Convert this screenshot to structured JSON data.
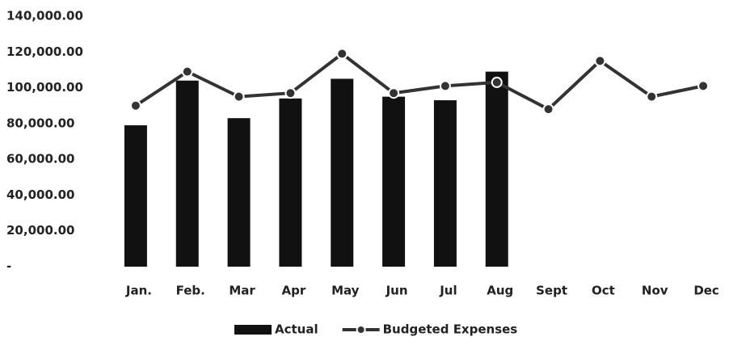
{
  "chart_data": {
    "type": "bar",
    "categories": [
      "Jan.",
      "Feb.",
      "Mar",
      "Apr",
      "May",
      "Jun",
      "Jul",
      "Aug",
      "Sept",
      "Oct",
      "Nov",
      "Dec"
    ],
    "series": [
      {
        "name": "Actual",
        "type": "bar",
        "color": "#111111",
        "values": [
          79000,
          104000,
          83000,
          94000,
          105000,
          95000,
          93000,
          109000,
          null,
          null,
          null,
          null
        ]
      },
      {
        "name": "Budgeted Expenses",
        "type": "line",
        "color": "#333333",
        "values": [
          90000,
          109000,
          95000,
          97000,
          119000,
          97000,
          101000,
          103000,
          88000,
          115000,
          95000,
          101000
        ]
      }
    ],
    "ylim": [
      0,
      140000
    ],
    "yticks": [
      {
        "value": 0,
        "label": "-"
      },
      {
        "value": 20000,
        "label": "20,000.00"
      },
      {
        "value": 40000,
        "label": "40,000.00"
      },
      {
        "value": 60000,
        "label": "60,000.00"
      },
      {
        "value": 80000,
        "label": "80,000.00"
      },
      {
        "value": 100000,
        "label": "100,000.00"
      },
      {
        "value": 120000,
        "label": "120,000.00"
      },
      {
        "value": 140000,
        "label": "140,000.00"
      }
    ],
    "grid": false,
    "legend": "bottom"
  }
}
